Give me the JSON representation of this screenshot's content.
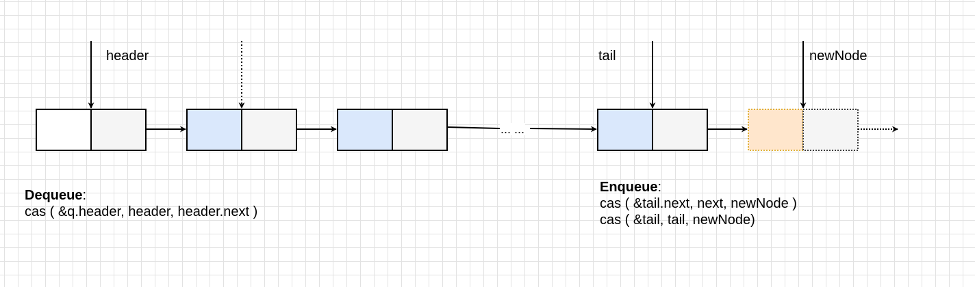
{
  "pointers": {
    "header": "header",
    "tail": "tail",
    "new_node": "newNode"
  },
  "ellipsis": "... ...",
  "dequeue": {
    "title": "Dequeue",
    "colon": ":",
    "code": [
      "cas ( &q.header, header, header.next )"
    ]
  },
  "enqueue": {
    "title": "Enqueue",
    "colon": ":",
    "code": [
      "cas ( &tail.next, next, newNode )",
      "cas ( &tail, tail, newNode)"
    ]
  },
  "colors": {
    "node_value_fill": "#dae8fc",
    "node_next_fill": "#f5f5f5",
    "sentinel_value_fill": "#ffffff",
    "new_node_value_fill": "#ffe6cc",
    "new_node_value_border": "#d79b00",
    "stroke": "#000000"
  }
}
